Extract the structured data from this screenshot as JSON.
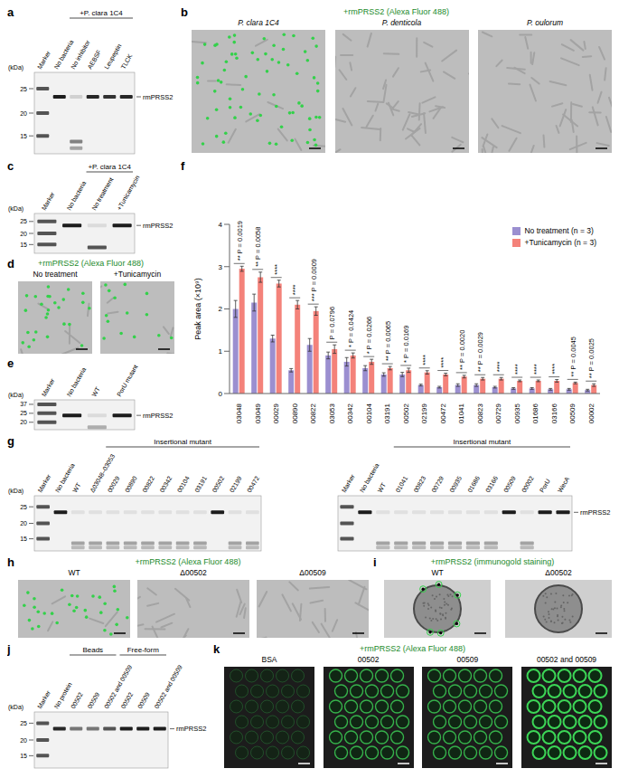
{
  "chart_data": {
    "type": "bar",
    "y_label": "Peak area (×10⁹)",
    "categories": [
      "03048",
      "03049",
      "00029",
      "00890",
      "00822",
      "03053",
      "00342",
      "00104",
      "03191",
      "00502",
      "02199",
      "00472",
      "01041",
      "00823",
      "00729",
      "00935",
      "01686",
      "03166",
      "00509",
      "00002"
    ],
    "series": [
      {
        "name": "No treatment (n = 3)",
        "color": "#9b8fd0",
        "values": [
          2.0,
          2.15,
          1.3,
          0.55,
          1.15,
          0.9,
          0.75,
          0.6,
          0.45,
          0.45,
          0.2,
          0.15,
          0.2,
          0.2,
          0.15,
          0.12,
          0.12,
          0.1,
          0.1,
          0.08
        ],
        "errors": [
          0.2,
          0.2,
          0.08,
          0.04,
          0.15,
          0.08,
          0.1,
          0.06,
          0.04,
          0.05,
          0.02,
          0.02,
          0.03,
          0.03,
          0.02,
          0.02,
          0.02,
          0.02,
          0.02,
          0.02
        ]
      },
      {
        "name": "+Tunicamycin (n = 3)",
        "color": "#f4827a",
        "values": [
          2.95,
          2.75,
          2.6,
          2.1,
          1.95,
          1.05,
          0.9,
          0.75,
          0.6,
          0.55,
          0.5,
          0.45,
          0.4,
          0.35,
          0.35,
          0.3,
          0.3,
          0.3,
          0.25,
          0.2
        ],
        "errors": [
          0.06,
          0.12,
          0.08,
          0.1,
          0.1,
          0.1,
          0.06,
          0.06,
          0.04,
          0.05,
          0.04,
          0.03,
          0.03,
          0.03,
          0.03,
          0.02,
          0.02,
          0.03,
          0.02,
          0.03
        ]
      }
    ],
    "annotations": [
      {
        "stars": "**",
        "label": "P = 0.0019"
      },
      {
        "stars": "**",
        "label": "P = 0.0058"
      },
      {
        "stars": "****"
      },
      {
        "stars": "****"
      },
      {
        "stars": "***",
        "label": "P = 0.0009"
      },
      {
        "label": "P = 0.0796"
      },
      {
        "stars": "*",
        "label": "P = 0.0424"
      },
      {
        "stars": "*",
        "label": "P = 0.0266"
      },
      {
        "stars": "**",
        "label": "P = 0.0065"
      },
      {
        "stars": "*",
        "label": "P = 0.0169"
      },
      {
        "stars": "****"
      },
      {
        "stars": "****"
      },
      {
        "stars": "**",
        "label": "P = 0.0020"
      },
      {
        "stars": "**",
        "label": "P = 0.0029"
      },
      {
        "stars": "****"
      },
      {
        "stars": "****"
      },
      {
        "stars": "****"
      },
      {
        "stars": "****"
      },
      {
        "stars": "**",
        "label": "P = 0.0045"
      },
      {
        "stars": "**",
        "label": "P = 0.0025"
      }
    ],
    "ylim": [
      0,
      4
    ],
    "yticks": [
      0,
      1,
      2,
      3,
      4
    ],
    "grid": false,
    "legend": "top-right"
  },
  "panels": {
    "a": {
      "letter": "a",
      "header": "+P. clara 1C4",
      "lanes": [
        "Marker",
        "No bacteria",
        "No inhibitor",
        "AEBSF",
        "Leupeptin",
        "TLCK"
      ],
      "kda_title": "(kDa)",
      "kda": [
        25,
        20,
        15
      ],
      "target": "rmPRSS2"
    },
    "b": {
      "letter": "b",
      "title": "+rmPRSS2 (Alexa Fluor 488)",
      "images": [
        "P. clara 1C4",
        "P. denticola",
        "P. oulorum"
      ]
    },
    "c": {
      "letter": "c",
      "header": "+P. clara 1C4",
      "lanes": [
        "Marker",
        "No bacteria",
        "No treatment",
        "+Tunicamycin"
      ],
      "kda_title": "(kDa)",
      "kda": [
        25,
        20,
        15
      ],
      "target": "rmPRSS2"
    },
    "d": {
      "letter": "d",
      "title": "+rmPRSS2 (Alexa Fluor 488)",
      "images": [
        "No treatment",
        "+Tunicamycin"
      ]
    },
    "e": {
      "letter": "e",
      "lanes": [
        "Marker",
        "No bacteria",
        "WT",
        "PorU mutant"
      ],
      "kda_title": "(kDa)",
      "kda": [
        37,
        25,
        20
      ],
      "target": "rmPRSS2"
    },
    "f": {
      "letter": "f"
    },
    "g": {
      "letter": "g",
      "header": "Insertional mutant",
      "kda_title": "(kDa)",
      "kda": [
        25,
        20,
        15
      ],
      "target": "rmPRSS2",
      "left_lanes": [
        "Marker",
        "No bacteria",
        "WT",
        "Δ03048–03053",
        "00029",
        "00890",
        "00822",
        "00342",
        "00104",
        "03191",
        "00502",
        "02199",
        "00472"
      ],
      "right_lanes": [
        "Marker",
        "No bacteria",
        "WT",
        "01041",
        "00823",
        "00729",
        "00935",
        "01686",
        "03166",
        "00509",
        "00002",
        "PorU",
        "WecA"
      ]
    },
    "h": {
      "letter": "h",
      "title": "+rmPRSS2 (Alexa Fluor 488)",
      "images": [
        "WT",
        "Δ00502",
        "Δ00509"
      ]
    },
    "i": {
      "letter": "i",
      "title": "+rmPRSS2 (immunogold staining)",
      "images": [
        "WT",
        "Δ00502"
      ]
    },
    "j": {
      "letter": "j",
      "headers": [
        "Beads",
        "Free-form"
      ],
      "lanes": [
        "Marker",
        "No protein",
        "00502",
        "00509",
        "00502 and 00509",
        "00502",
        "00509",
        "00502 and 00509"
      ],
      "kda_title": "(kDa)",
      "kda": [
        25,
        20,
        15
      ],
      "target": "rmPRSS2"
    },
    "k": {
      "letter": "k",
      "title": "+rmPRSS2 (Alexa Fluor 488)",
      "images": [
        "BSA",
        "00502",
        "00509",
        "00502 and 00509"
      ]
    }
  }
}
